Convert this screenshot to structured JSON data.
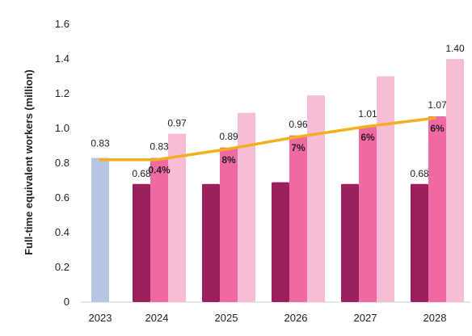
{
  "chart_data": {
    "type": "bar",
    "ylabel": "Full-time equivalent workers (million)",
    "ylim": [
      0,
      1.6
    ],
    "yticks": [
      "0",
      "0.2",
      "0.4",
      "0.6",
      "0.8",
      "1.0",
      "1.2",
      "1.4",
      "1.6"
    ],
    "categories": [
      "2023",
      "2024",
      "2025",
      "2026",
      "2027",
      "2028"
    ],
    "grid": false,
    "legend": "none",
    "baseline_bar": {
      "category": "2023",
      "value": 0.83,
      "color": "#b8c6e6",
      "label": "0.83"
    },
    "series": [
      {
        "values": [
          null,
          0.68,
          0.68,
          0.69,
          0.68,
          0.68
        ],
        "color": "#9b1f5c"
      },
      {
        "values": [
          null,
          0.83,
          0.89,
          0.96,
          1.01,
          1.07
        ],
        "color": "#ef6aa0"
      },
      {
        "values": [
          null,
          0.97,
          1.09,
          1.19,
          1.3,
          1.4
        ],
        "color": "#f8bdd6"
      }
    ],
    "line": {
      "values": [
        0.82,
        0.82,
        0.88,
        0.95,
        1.01,
        1.06
      ],
      "color": "#f2b01e"
    },
    "data_labels": {
      "dark": [
        "",
        "0.68",
        "",
        "",
        "",
        "0.68"
      ],
      "mid": [
        "",
        "0.83",
        "0.89",
        "0.96",
        "1.01",
        "1.07"
      ],
      "light": [
        "",
        "0.97",
        "",
        "",
        "",
        "1.40"
      ],
      "pct": [
        "",
        "0.4%",
        "8%",
        "7%",
        "6%",
        "6%"
      ]
    }
  }
}
